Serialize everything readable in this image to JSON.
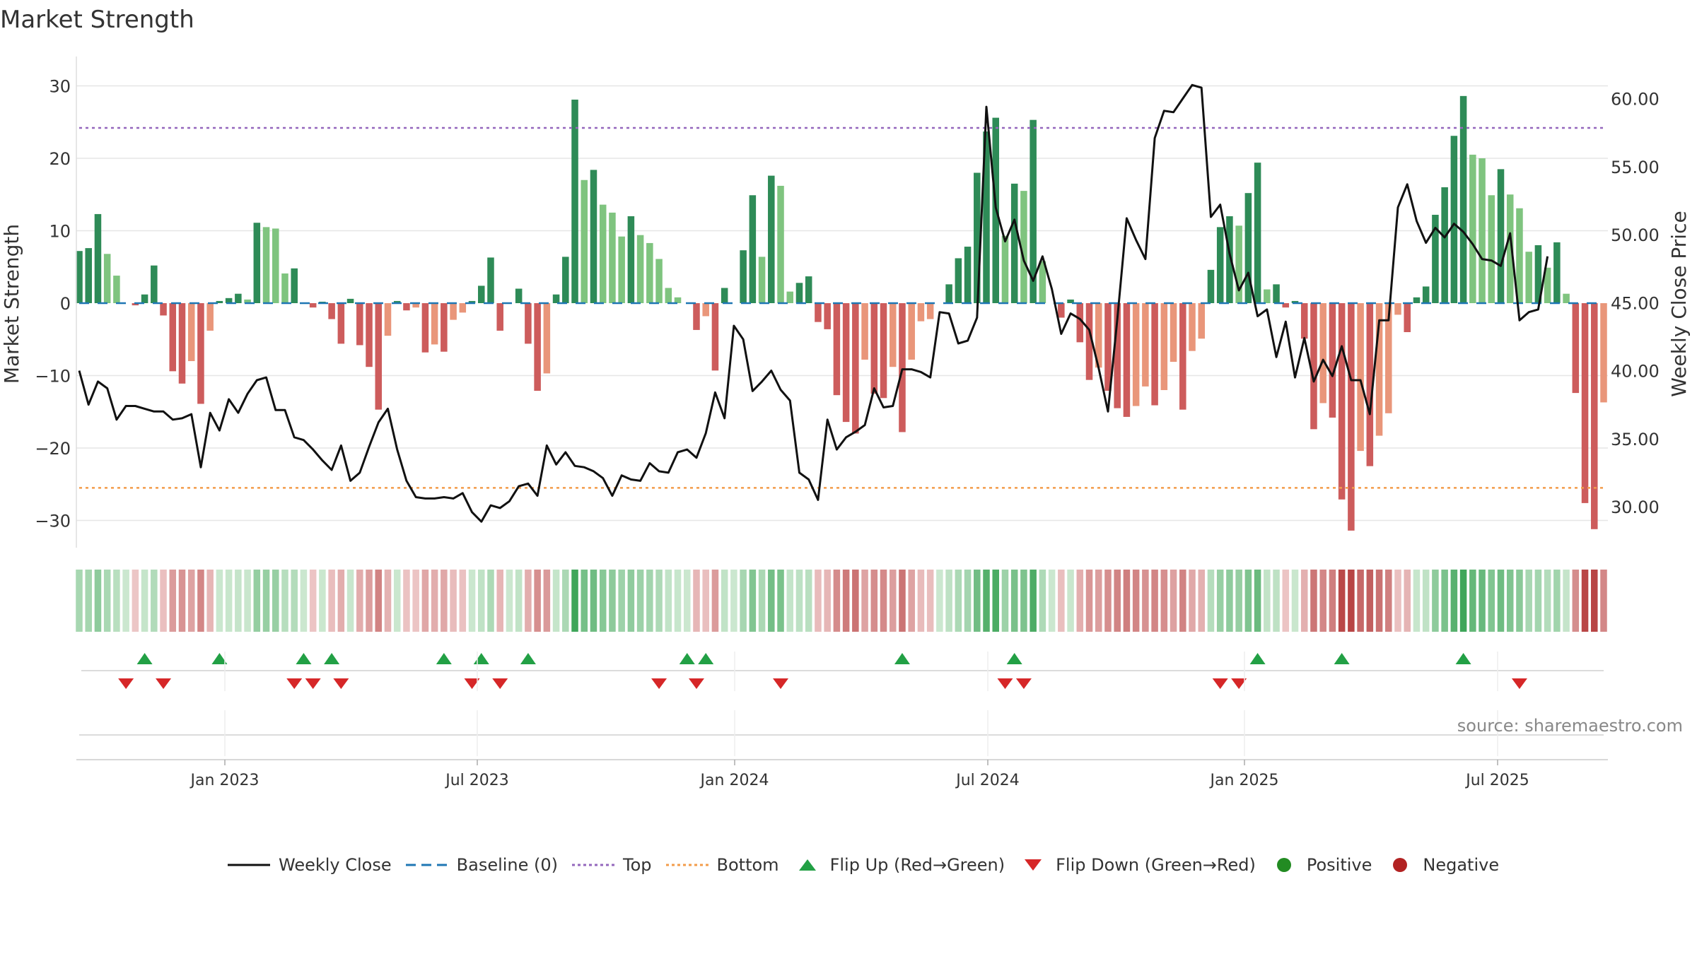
{
  "title": "Market Strength",
  "source": "source: sharemaestro.com",
  "colors": {
    "strong_pos": "#2e8b57",
    "weak_pos": "#7fc47f",
    "strong_neg": "#cd5c5c",
    "weak_neg": "#e9967a",
    "price_line": "#111111",
    "baseline": "#1f77b4",
    "top": "#9467bd",
    "bottom": "#f39c4a",
    "flip_up": "#22a045",
    "flip_down": "#d62728",
    "positive": "#228b22",
    "negative": "#b22222"
  },
  "chart_data": {
    "type": "bar",
    "title": "Market Strength",
    "ylabel": "Market Strength",
    "ylabel_right": "Weekly Close Price",
    "ylim": [
      -34,
      35
    ],
    "ylim_right": [
      27.5,
      63.0
    ],
    "yticks": [
      "30",
      "20",
      "10",
      "0",
      "−10",
      "−20",
      "−30"
    ],
    "yticks_right": [
      "60.00",
      "55.00",
      "50.00",
      "45.00",
      "40.00",
      "35.00",
      "30.00"
    ],
    "xticks": [
      "Jan 2023",
      "Jul 2023",
      "Jan 2024",
      "Jul 2024",
      "Jan 2025",
      "Jul 2025"
    ],
    "top_level": 24.2,
    "bottom_level": -25.5,
    "strength": [
      7.2,
      7.6,
      12.3,
      6.8,
      3.8,
      0.0,
      -0.3,
      1.2,
      5.2,
      -1.7,
      -9.4,
      -11.1,
      -8.0,
      -13.9,
      -3.8,
      0.3,
      0.7,
      1.3,
      0.5,
      11.1,
      10.5,
      10.3,
      4.1,
      4.8,
      0.0,
      -0.6,
      0.2,
      -2.2,
      -5.6,
      0.6,
      -5.8,
      -8.8,
      -14.7,
      -4.5,
      0.3,
      -1.0,
      -0.6,
      -6.8,
      -5.7,
      -6.7,
      -2.3,
      -1.3,
      0.3,
      2.4,
      6.3,
      -3.8,
      0.0,
      2.0,
      -5.6,
      -12.1,
      -9.7,
      1.2,
      6.4,
      28.1,
      17.0,
      18.4,
      13.6,
      12.5,
      9.2,
      12.0,
      9.4,
      8.3,
      6.1,
      2.1,
      0.8,
      0.0,
      -3.7,
      -1.8,
      -9.3,
      2.1,
      0.0,
      7.3,
      14.9,
      6.4,
      17.6,
      16.2,
      1.6,
      2.8,
      3.7,
      -2.6,
      -3.6,
      -12.7,
      -16.4,
      -18.0,
      -7.8,
      -12.5,
      -13.1,
      -8.8,
      -17.8,
      -7.8,
      -2.5,
      -2.2,
      0.0,
      2.6,
      6.2,
      7.8,
      18.0,
      23.7,
      25.6,
      9.3,
      16.5,
      15.5,
      25.3,
      5.8,
      0.0,
      -2.0,
      0.5,
      -5.4,
      -10.6,
      -8.9,
      -12.1,
      -14.5,
      -15.7,
      -14.2,
      -11.5,
      -14.1,
      -12.0,
      -8.1,
      -14.7,
      -6.6,
      -4.9,
      4.6,
      10.5,
      12.0,
      10.7,
      15.2,
      19.4,
      1.9,
      2.6,
      -0.6,
      0.3,
      -4.9,
      -17.4,
      -13.8,
      -15.8,
      -27.1,
      -31.4,
      -20.4,
      -22.5,
      -18.3,
      -15.2,
      -1.6,
      -4.0,
      0.8,
      2.3,
      12.2,
      16.0,
      23.1,
      28.6,
      20.5,
      20.0,
      14.9,
      18.5,
      15.0,
      13.1,
      7.1,
      8.0,
      4.9,
      8.4,
      1.3,
      -12.4,
      -27.6,
      -31.2,
      -13.7
    ],
    "weekly_close": [
      40.0,
      37.5,
      39.2,
      38.7,
      36.4,
      37.4,
      37.4,
      37.2,
      37.0,
      37.0,
      36.4,
      36.5,
      36.8,
      32.9,
      36.9,
      35.6,
      37.9,
      36.9,
      38.3,
      39.3,
      39.5,
      37.1,
      37.1,
      35.1,
      34.9,
      34.2,
      33.4,
      32.7,
      34.5,
      31.9,
      32.5,
      34.4,
      36.2,
      37.2,
      34.2,
      31.9,
      30.7,
      30.6,
      30.6,
      30.7,
      30.6,
      31.0,
      29.6,
      28.9,
      30.1,
      29.9,
      30.4,
      31.5,
      31.7,
      30.8,
      34.5,
      33.1,
      34.0,
      33.0,
      32.9,
      32.6,
      32.1,
      30.8,
      32.3,
      32.0,
      31.9,
      33.2,
      32.6,
      32.5,
      34.0,
      34.2,
      33.6,
      35.4,
      38.4,
      36.5,
      43.3,
      42.3,
      38.5,
      39.2,
      40.0,
      38.6,
      37.8,
      32.5,
      32.0,
      30.5,
      36.4,
      34.2,
      35.1,
      35.5,
      36.0,
      38.7,
      37.3,
      37.4,
      40.1,
      40.1,
      39.9,
      39.5,
      44.3,
      44.2,
      42.0,
      42.2,
      43.9,
      59.4,
      52.0,
      49.5,
      51.1,
      48.1,
      46.6,
      48.4,
      46.0,
      42.7,
      44.2,
      43.8,
      43.0,
      40.2,
      37.0,
      43.8,
      51.2,
      49.6,
      48.2,
      57.1,
      59.1,
      59.0,
      60.0,
      61.0,
      60.8,
      51.3,
      52.2,
      48.6,
      45.9,
      47.2,
      44.0,
      44.5,
      41.0,
      43.6,
      39.5,
      42.4,
      39.2,
      40.8,
      39.6,
      41.8,
      39.3,
      39.3,
      36.8,
      43.7,
      43.7,
      52.0,
      53.7,
      51.0,
      49.4,
      50.5,
      49.8,
      50.8,
      50.2,
      49.3,
      48.2,
      48.1,
      47.7,
      50.1,
      43.7,
      44.3,
      44.5,
      48.4
    ],
    "baseline": 0,
    "flip_up_weeks": [
      7,
      15,
      24,
      27,
      39,
      43,
      48,
      65,
      67,
      88,
      100,
      126,
      135,
      148
    ],
    "flip_down_weeks": [
      5,
      9,
      23,
      25,
      28,
      42,
      45,
      62,
      66,
      75,
      99,
      101,
      122,
      124,
      154
    ],
    "legend": [
      "Weekly Close",
      "Baseline (0)",
      "Top",
      "Bottom",
      "Flip Up (Red→Green)",
      "Flip Down (Green→Red)",
      "Positive",
      "Negative"
    ]
  }
}
